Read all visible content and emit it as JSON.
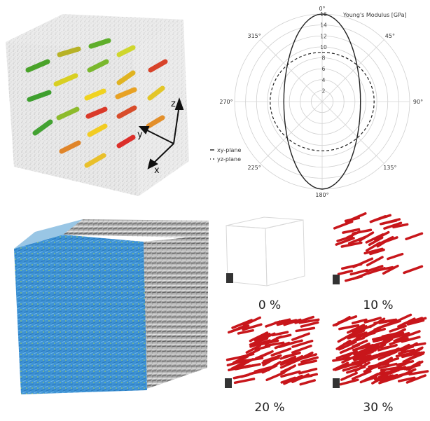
{
  "polar": {
    "title": "Young's Modulus  [GPa]",
    "angles": [
      "0°",
      "45°",
      "90°",
      "135°",
      "180°",
      "225°",
      "270°",
      "315°"
    ],
    "radial_ticks": [
      "2",
      "4",
      "6",
      "8",
      "10",
      "12",
      "14",
      "16"
    ],
    "legend": [
      {
        "label": "xy-plane",
        "style": "solid"
      },
      {
        "label": "yz-plane",
        "style": "dashed"
      }
    ]
  },
  "axes3d": {
    "z": "z",
    "y": "y",
    "x": "x"
  },
  "volume_fractions": [
    "0 %",
    "10 %",
    "20 %",
    "30 %"
  ],
  "colors": {
    "fiber_red": "#c8161b",
    "fluid_blue": "#3a8fd0",
    "fiber_gray": "#9a9a9a"
  }
}
